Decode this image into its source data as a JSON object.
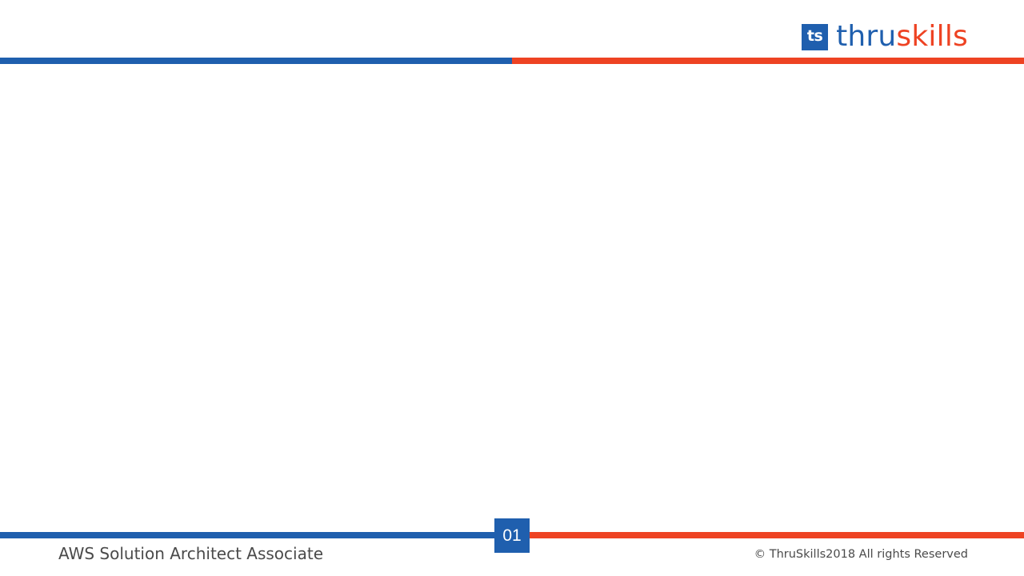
{
  "header": {
    "logo": {
      "mark_text": "ts",
      "word_part1": "thru",
      "word_part2": "skills"
    }
  },
  "footer": {
    "page_number": "01",
    "course_title": "AWS Solution Architect Associate",
    "copyright": "© ThruSkills2018 All rights Reserved"
  },
  "colors": {
    "brand_blue": "#1f5fae",
    "brand_orange": "#ee4323",
    "text_gray": "#4a4a4a"
  }
}
